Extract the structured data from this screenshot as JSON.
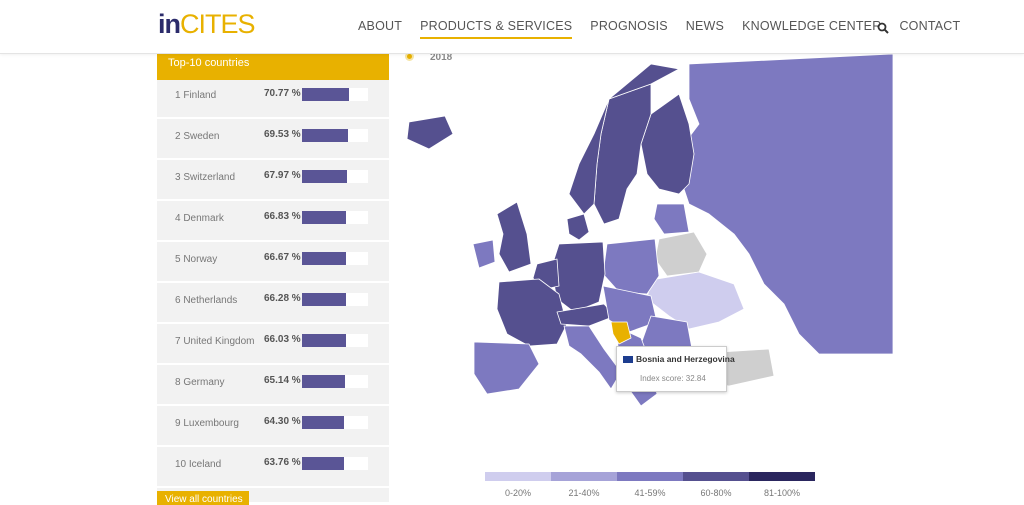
{
  "header": {
    "logo_in": "in",
    "logo_cites": "CITES",
    "nav": [
      "ABOUT",
      "PRODUCTS & SERVICES",
      "PROGNOSIS",
      "NEWS",
      "KNOWLEDGE CENTER",
      "CONTACT"
    ],
    "active_nav": "PRODUCTS & SERVICES",
    "search_icon": "search-icon"
  },
  "panel": {
    "title": "Top-10 countries",
    "view_all": "View all countries",
    "rows": [
      {
        "name": "1 Finland",
        "value": "70.77 %",
        "pct": 70.77
      },
      {
        "name": "2 Sweden",
        "value": "69.53 %",
        "pct": 69.53
      },
      {
        "name": "3 Switzerland",
        "value": "67.97 %",
        "pct": 67.97
      },
      {
        "name": "4 Denmark",
        "value": "66.83 %",
        "pct": 66.83
      },
      {
        "name": "5 Norway",
        "value": "66.67 %",
        "pct": 66.67
      },
      {
        "name": "6 Netherlands",
        "value": "66.28 %",
        "pct": 66.28
      },
      {
        "name": "7 United Kingdom",
        "value": "66.03 %",
        "pct": 66.03
      },
      {
        "name": "8 Germany",
        "value": "65.14 %",
        "pct": 65.14
      },
      {
        "name": "9 Luxembourg",
        "value": "64.30 %",
        "pct": 64.3
      },
      {
        "name": "10 Iceland",
        "value": "63.76 %",
        "pct": 63.76
      }
    ]
  },
  "map": {
    "year": "2018",
    "tooltip_title": "Bosnia and Herzegovina",
    "tooltip_score": "Index score: 32.84"
  },
  "legend": {
    "items": [
      {
        "label": "0-20%",
        "color": "#cfcdee"
      },
      {
        "label": "21-40%",
        "color": "#a6a3d8"
      },
      {
        "label": "41-59%",
        "color": "#7d79c0"
      },
      {
        "label": "60-80%",
        "color": "#55508f"
      },
      {
        "label": "81-100%",
        "color": "#2a265e"
      }
    ]
  },
  "colors": {
    "accent": "#e8b100",
    "bar": "#5a5596",
    "no_data": "#cfcfcf",
    "selected": "#e8b100"
  }
}
